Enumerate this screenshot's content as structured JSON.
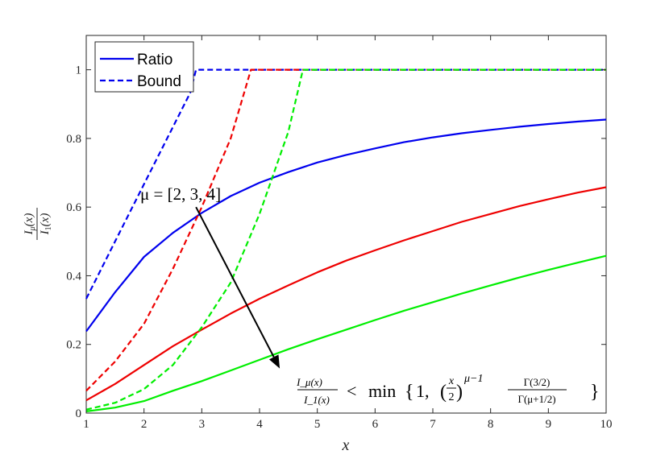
{
  "chart_data": {
    "type": "line",
    "xlabel": "x",
    "ylabel": {
      "num_base": "I",
      "num_sub": "μ",
      "num_arg": "(x)",
      "den_base": "I",
      "den_sub": "1",
      "den_arg": "(x)"
    },
    "xlim": [
      1,
      10
    ],
    "ylim": [
      0,
      1.1
    ],
    "xticks": [
      1,
      2,
      3,
      4,
      5,
      6,
      7,
      8,
      9,
      10
    ],
    "yticks": [
      0,
      0.2,
      0.4,
      0.6,
      0.8,
      1
    ],
    "ytick_labels": [
      "0",
      "0.2",
      "0.4",
      "0.6",
      "0.8",
      "1"
    ],
    "grid": false,
    "legend": {
      "placement": "top-left",
      "entries": [
        {
          "label": "Ratio",
          "style": "solid"
        },
        {
          "label": "Bound",
          "style": "dashed"
        }
      ]
    },
    "colors": {
      "mu2": "#0000ee",
      "mu3": "#ee0000",
      "mu4": "#00ee00"
    },
    "x": [
      1,
      1.5,
      2,
      2.5,
      3,
      3.5,
      4,
      4.5,
      5,
      5.5,
      6,
      6.5,
      7,
      7.5,
      8,
      8.5,
      9,
      9.5,
      10
    ],
    "series": [
      {
        "mu": 2,
        "color": "#0000ee",
        "style": "solid",
        "values": [
          0.238,
          0.352,
          0.455,
          0.525,
          0.583,
          0.632,
          0.671,
          0.702,
          0.73,
          0.752,
          0.771,
          0.789,
          0.803,
          0.815,
          0.825,
          0.834,
          0.842,
          0.849,
          0.855
        ]
      },
      {
        "mu": 3,
        "color": "#ee0000",
        "style": "solid",
        "values": [
          0.037,
          0.085,
          0.14,
          0.195,
          0.243,
          0.29,
          0.333,
          0.372,
          0.41,
          0.444,
          0.474,
          0.503,
          0.53,
          0.557,
          0.58,
          0.603,
          0.623,
          0.642,
          0.658
        ]
      },
      {
        "mu": 4,
        "color": "#00ee00",
        "style": "solid",
        "values": [
          0.005,
          0.016,
          0.035,
          0.065,
          0.093,
          0.124,
          0.155,
          0.186,
          0.215,
          0.243,
          0.271,
          0.298,
          0.323,
          0.348,
          0.372,
          0.395,
          0.417,
          0.438,
          0.458
        ]
      },
      {
        "mu": 2,
        "color": "#0000ee",
        "style": "dashed",
        "x": [
          1,
          1.5,
          2,
          2.5,
          2.8,
          2.9,
          10
        ],
        "values": [
          0.333,
          0.5,
          0.667,
          0.833,
          0.933,
          1,
          1
        ]
      },
      {
        "mu": 3,
        "color": "#ee0000",
        "style": "dashed",
        "x": [
          1,
          1.5,
          2,
          2.5,
          3,
          3.5,
          3.85,
          10
        ],
        "values": [
          0.065,
          0.15,
          0.26,
          0.42,
          0.6,
          0.8,
          1,
          1
        ]
      },
      {
        "mu": 4,
        "color": "#00ee00",
        "style": "dashed",
        "x": [
          1,
          1.5,
          2,
          2.5,
          3,
          3.5,
          4,
          4.5,
          4.75,
          10
        ],
        "values": [
          0.01,
          0.03,
          0.07,
          0.14,
          0.25,
          0.38,
          0.58,
          0.82,
          1,
          1
        ]
      }
    ],
    "annotations": {
      "mu_label": "μ = [2,  3,  4]",
      "arrow_from": [
        2.9,
        0.6
      ],
      "arrow_to": [
        4.35,
        0.13
      ],
      "formula": {
        "lhs_num": "I_μ(x)",
        "lhs_den": "I_1(x)",
        "lt": "<",
        "min": "min",
        "open": "{",
        "one": "1,",
        "paren_open": "(",
        "frac_num": "x",
        "frac_den": "2",
        "paren_close": ")",
        "exponent": "μ−1",
        "gamma_num": "Γ(3/2)",
        "gamma_den": "Γ(μ+1/2)",
        "close": "}"
      }
    }
  }
}
